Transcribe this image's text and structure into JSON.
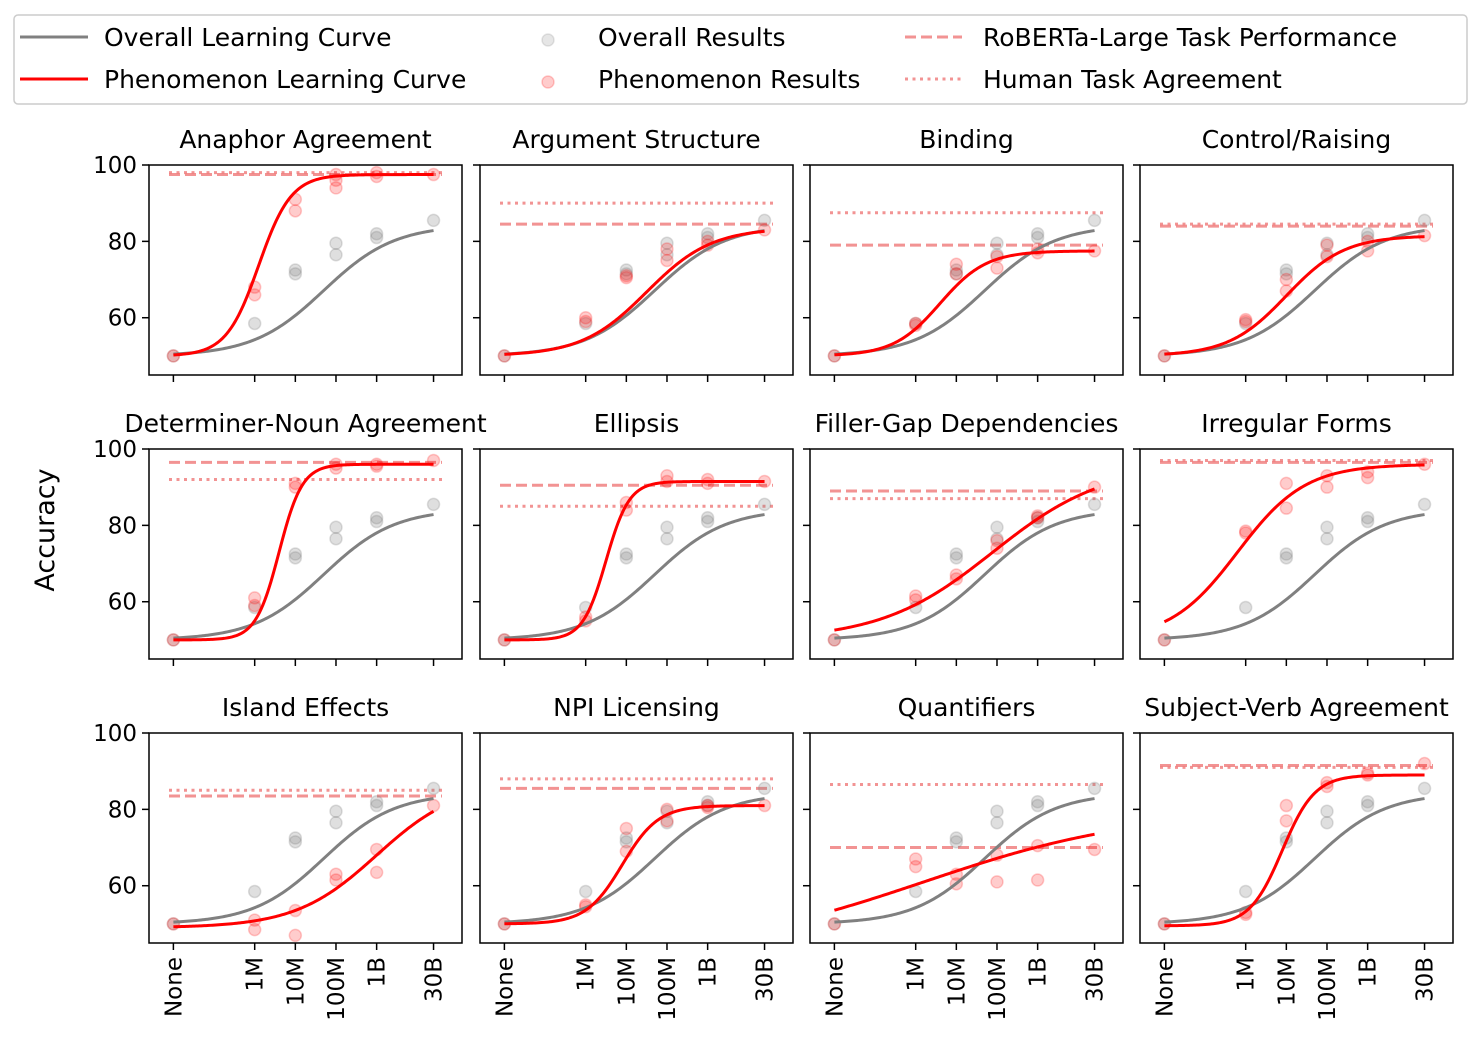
{
  "chart_data": {
    "type": "line",
    "ylabel": "Accuracy",
    "ylim": [
      45,
      100
    ],
    "yticks": [
      60,
      80,
      100
    ],
    "xticks": [
      "None",
      "1M",
      "10M",
      "100M",
      "1B",
      "30B"
    ],
    "legend": {
      "placement": "top",
      "entries": [
        {
          "id": "overall_curve",
          "label": "Overall Learning Curve"
        },
        {
          "id": "overall_results",
          "label": "Overall Results"
        },
        {
          "id": "roberta",
          "label": "RoBERTa-Large Task Performance"
        },
        {
          "id": "phen_curve",
          "label": "Phenomenon Learning Curve"
        },
        {
          "id": "phen_results",
          "label": "Phenomenon Results"
        },
        {
          "id": "human",
          "label": "Human Task Agreement"
        }
      ]
    },
    "colors": {
      "overall": "#808080",
      "phenomenon": "#ff0000",
      "reference": "#f08080"
    },
    "overall_curve": {
      "base": 50,
      "top": 84.3,
      "mid": 1.85,
      "slope": 2.3
    },
    "overall_points": [
      {
        "x": 0,
        "y": 50
      },
      {
        "x": 1,
        "y": 58.5
      },
      {
        "x": 1.5,
        "y": 71.5
      },
      {
        "x": 1.5,
        "y": 72.5
      },
      {
        "x": 2,
        "y": 76.5
      },
      {
        "x": 2,
        "y": 79.5
      },
      {
        "x": 2.5,
        "y": 81
      },
      {
        "x": 2.5,
        "y": 82
      },
      {
        "x": 3.2,
        "y": 85.5
      }
    ],
    "panels": [
      {
        "title": "Anaphor Agreement",
        "curve": {
          "base": 50,
          "top": 97.5,
          "mid": 1.05,
          "slope": 5.0
        },
        "roberta": 97.5,
        "human": 98.0,
        "points": [
          {
            "x": 0,
            "y": 50
          },
          {
            "x": 1,
            "y": 68
          },
          {
            "x": 1,
            "y": 66
          },
          {
            "x": 1.5,
            "y": 91
          },
          {
            "x": 1.5,
            "y": 88
          },
          {
            "x": 2,
            "y": 96
          },
          {
            "x": 2,
            "y": 94
          },
          {
            "x": 2,
            "y": 97.5
          },
          {
            "x": 2.5,
            "y": 98
          },
          {
            "x": 2.5,
            "y": 97
          },
          {
            "x": 3.2,
            "y": 97.5
          }
        ]
      },
      {
        "title": "Argument Structure",
        "curve": {
          "base": 50,
          "top": 83.5,
          "mid": 1.75,
          "slope": 2.5
        },
        "roberta": 84.5,
        "human": 90.0,
        "points": [
          {
            "x": 0,
            "y": 50
          },
          {
            "x": 1,
            "y": 60
          },
          {
            "x": 1,
            "y": 59
          },
          {
            "x": 1.5,
            "y": 70.5
          },
          {
            "x": 1.5,
            "y": 71
          },
          {
            "x": 2,
            "y": 78
          },
          {
            "x": 2,
            "y": 75
          },
          {
            "x": 2.5,
            "y": 80
          },
          {
            "x": 2.5,
            "y": 79
          },
          {
            "x": 3.2,
            "y": 83
          }
        ]
      },
      {
        "title": "Binding",
        "curve": {
          "base": 50,
          "top": 77.5,
          "mid": 1.3,
          "slope": 3.5
        },
        "roberta": 79.0,
        "human": 87.5,
        "points": [
          {
            "x": 0,
            "y": 50
          },
          {
            "x": 1,
            "y": 58
          },
          {
            "x": 1,
            "y": 58.5
          },
          {
            "x": 1.5,
            "y": 71.5
          },
          {
            "x": 1.5,
            "y": 74
          },
          {
            "x": 2,
            "y": 76
          },
          {
            "x": 2,
            "y": 73
          },
          {
            "x": 2.5,
            "y": 78
          },
          {
            "x": 2.5,
            "y": 77
          },
          {
            "x": 3.2,
            "y": 77.5
          }
        ]
      },
      {
        "title": "Control/Raising",
        "curve": {
          "base": 50,
          "top": 81.5,
          "mid": 1.5,
          "slope": 2.8
        },
        "roberta": 84.0,
        "human": 84.5,
        "points": [
          {
            "x": 0,
            "y": 50
          },
          {
            "x": 1,
            "y": 59
          },
          {
            "x": 1,
            "y": 59.5
          },
          {
            "x": 1.5,
            "y": 70
          },
          {
            "x": 1.5,
            "y": 67
          },
          {
            "x": 2,
            "y": 79
          },
          {
            "x": 2,
            "y": 76
          },
          {
            "x": 2.5,
            "y": 80
          },
          {
            "x": 2.5,
            "y": 77.5
          },
          {
            "x": 3.2,
            "y": 81.5
          }
        ]
      },
      {
        "title": "Determiner-Noun Agreement",
        "curve": {
          "base": 50,
          "top": 96.0,
          "mid": 1.3,
          "slope": 7.0
        },
        "roberta": 96.5,
        "human": 92.0,
        "points": [
          {
            "x": 0,
            "y": 50
          },
          {
            "x": 1,
            "y": 61
          },
          {
            "x": 1,
            "y": 59
          },
          {
            "x": 1.5,
            "y": 90
          },
          {
            "x": 1.5,
            "y": 91
          },
          {
            "x": 2,
            "y": 96
          },
          {
            "x": 2,
            "y": 95
          },
          {
            "x": 2.5,
            "y": 96
          },
          {
            "x": 2.5,
            "y": 95.5
          },
          {
            "x": 3.2,
            "y": 97
          }
        ]
      },
      {
        "title": "Ellipsis",
        "curve": {
          "base": 50,
          "top": 91.5,
          "mid": 1.25,
          "slope": 7.0
        },
        "roberta": 90.5,
        "human": 85.0,
        "points": [
          {
            "x": 0,
            "y": 50
          },
          {
            "x": 1,
            "y": 55
          },
          {
            "x": 1,
            "y": 56
          },
          {
            "x": 1.5,
            "y": 84
          },
          {
            "x": 1.5,
            "y": 86
          },
          {
            "x": 2,
            "y": 93
          },
          {
            "x": 2,
            "y": 91.5
          },
          {
            "x": 2.5,
            "y": 92
          },
          {
            "x": 2.5,
            "y": 91
          },
          {
            "x": 3.2,
            "y": 91.5
          }
        ]
      },
      {
        "title": "Filler-Gap Dependencies",
        "curve": {
          "base": 50,
          "top": 96.0,
          "mid": 1.95,
          "slope": 1.45
        },
        "roberta": 89.0,
        "human": 87.0,
        "points": [
          {
            "x": 0,
            "y": 50
          },
          {
            "x": 1,
            "y": 61.5
          },
          {
            "x": 1,
            "y": 60.5
          },
          {
            "x": 1.5,
            "y": 66
          },
          {
            "x": 1.5,
            "y": 67
          },
          {
            "x": 2,
            "y": 74
          },
          {
            "x": 2,
            "y": 76
          },
          {
            "x": 2.5,
            "y": 82
          },
          {
            "x": 2.5,
            "y": 82.5
          },
          {
            "x": 3.2,
            "y": 90
          }
        ]
      },
      {
        "title": "Irregular Forms",
        "curve": {
          "base": 50,
          "top": 96.0,
          "mid": 0.9,
          "slope": 2.4
        },
        "roberta": 96.5,
        "human": 97.0,
        "points": [
          {
            "x": 0,
            "y": 50
          },
          {
            "x": 1,
            "y": 78
          },
          {
            "x": 1,
            "y": 78.5
          },
          {
            "x": 1.5,
            "y": 91
          },
          {
            "x": 1.5,
            "y": 84.5
          },
          {
            "x": 2,
            "y": 93
          },
          {
            "x": 2,
            "y": 90
          },
          {
            "x": 2.5,
            "y": 94
          },
          {
            "x": 2.5,
            "y": 92.5
          },
          {
            "x": 3.2,
            "y": 96
          }
        ]
      },
      {
        "title": "Island Effects",
        "curve": {
          "base": 49,
          "top": 87.0,
          "mid": 2.5,
          "slope": 2.0
        },
        "roberta": 83.5,
        "human": 85.0,
        "points": [
          {
            "x": 0,
            "y": 50
          },
          {
            "x": 1,
            "y": 51
          },
          {
            "x": 1,
            "y": 48.5
          },
          {
            "x": 1.5,
            "y": 53.5
          },
          {
            "x": 1.5,
            "y": 47
          },
          {
            "x": 2,
            "y": 63
          },
          {
            "x": 2,
            "y": 61.5
          },
          {
            "x": 2.5,
            "y": 69.5
          },
          {
            "x": 2.5,
            "y": 63.5
          },
          {
            "x": 3.2,
            "y": 81
          }
        ]
      },
      {
        "title": "NPI Licensing",
        "curve": {
          "base": 50,
          "top": 81.0,
          "mid": 1.45,
          "slope": 4.5
        },
        "roberta": 85.5,
        "human": 88.0,
        "points": [
          {
            "x": 0,
            "y": 50
          },
          {
            "x": 1,
            "y": 55
          },
          {
            "x": 1,
            "y": 54.5
          },
          {
            "x": 1.5,
            "y": 75
          },
          {
            "x": 1.5,
            "y": 69
          },
          {
            "x": 2,
            "y": 77
          },
          {
            "x": 2,
            "y": 80
          },
          {
            "x": 2.5,
            "y": 80.5
          },
          {
            "x": 2.5,
            "y": 81
          },
          {
            "x": 3.2,
            "y": 81
          }
        ]
      },
      {
        "title": "Quantifiers",
        "curve": {
          "base": 42,
          "top": 80.0,
          "mid": 1.1,
          "slope": 0.75
        },
        "roberta": 70.0,
        "human": 86.5,
        "points": [
          {
            "x": 0,
            "y": 50
          },
          {
            "x": 1,
            "y": 67
          },
          {
            "x": 1,
            "y": 65
          },
          {
            "x": 1.5,
            "y": 63
          },
          {
            "x": 1.5,
            "y": 60.5
          },
          {
            "x": 2,
            "y": 61
          },
          {
            "x": 2,
            "y": 68
          },
          {
            "x": 2.5,
            "y": 61.5
          },
          {
            "x": 2.5,
            "y": 70.5
          },
          {
            "x": 3.2,
            "y": 69.5
          }
        ]
      },
      {
        "title": "Subject-Verb Agreement",
        "curve": {
          "base": 49.5,
          "top": 89.0,
          "mid": 1.45,
          "slope": 5.0
        },
        "roberta": 91.5,
        "human": 91.0,
        "points": [
          {
            "x": 0,
            "y": 50
          },
          {
            "x": 1,
            "y": 53
          },
          {
            "x": 1,
            "y": 52.5
          },
          {
            "x": 1.5,
            "y": 81
          },
          {
            "x": 1.5,
            "y": 77
          },
          {
            "x": 2,
            "y": 87
          },
          {
            "x": 2,
            "y": 86
          },
          {
            "x": 2.5,
            "y": 89.5
          },
          {
            "x": 2.5,
            "y": 89
          },
          {
            "x": 3.2,
            "y": 92
          }
        ]
      }
    ]
  }
}
